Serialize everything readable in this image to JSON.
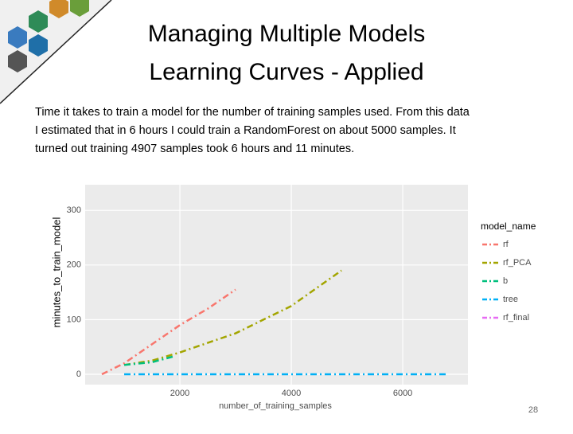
{
  "title": [
    "Managing Multiple Models",
    "Learning Curves - Applied"
  ],
  "body": [
    "Time it takes to train a model for the number of training samples used. From this data",
    "I estimated that in 6 hours I could train a RandomForest on about 5000 samples. It",
    "turned out training 4907 samples took 6 hours and 11 minutes."
  ],
  "page_number": "28",
  "chart_data": {
    "type": "line",
    "x_label": "number_of_training_samples",
    "y_label": "minutes_to_train_model",
    "legend_title": "model_name",
    "legend": "right",
    "grid": true,
    "xlim": [
      300,
      7170
    ],
    "ylim": [
      -19,
      347
    ],
    "xticks": [
      2000,
      4000,
      6000
    ],
    "yticks": [
      0,
      100,
      200,
      300
    ],
    "series": [
      {
        "name": "rf",
        "color": "#F8766D",
        "x": [
          600,
          1000,
          1500,
          2000,
          2500,
          3000
        ],
        "values": [
          0,
          20,
          55,
          90,
          120,
          155
        ]
      },
      {
        "name": "rf_PCA",
        "color": "#A3A500",
        "x": [
          1000,
          1500,
          2000,
          3000,
          4000,
          4900
        ],
        "values": [
          17,
          25,
          40,
          75,
          125,
          190
        ]
      },
      {
        "name": "b",
        "color": "#00BF7D",
        "x": [
          1000,
          1500,
          1900
        ],
        "values": [
          17,
          22,
          33
        ]
      },
      {
        "name": "tree",
        "color": "#00B0F6",
        "x": [
          1000,
          6800
        ],
        "values": [
          0,
          0
        ]
      },
      {
        "name": "rf_final",
        "color": "#E76BF3",
        "x": [],
        "values": []
      }
    ]
  }
}
